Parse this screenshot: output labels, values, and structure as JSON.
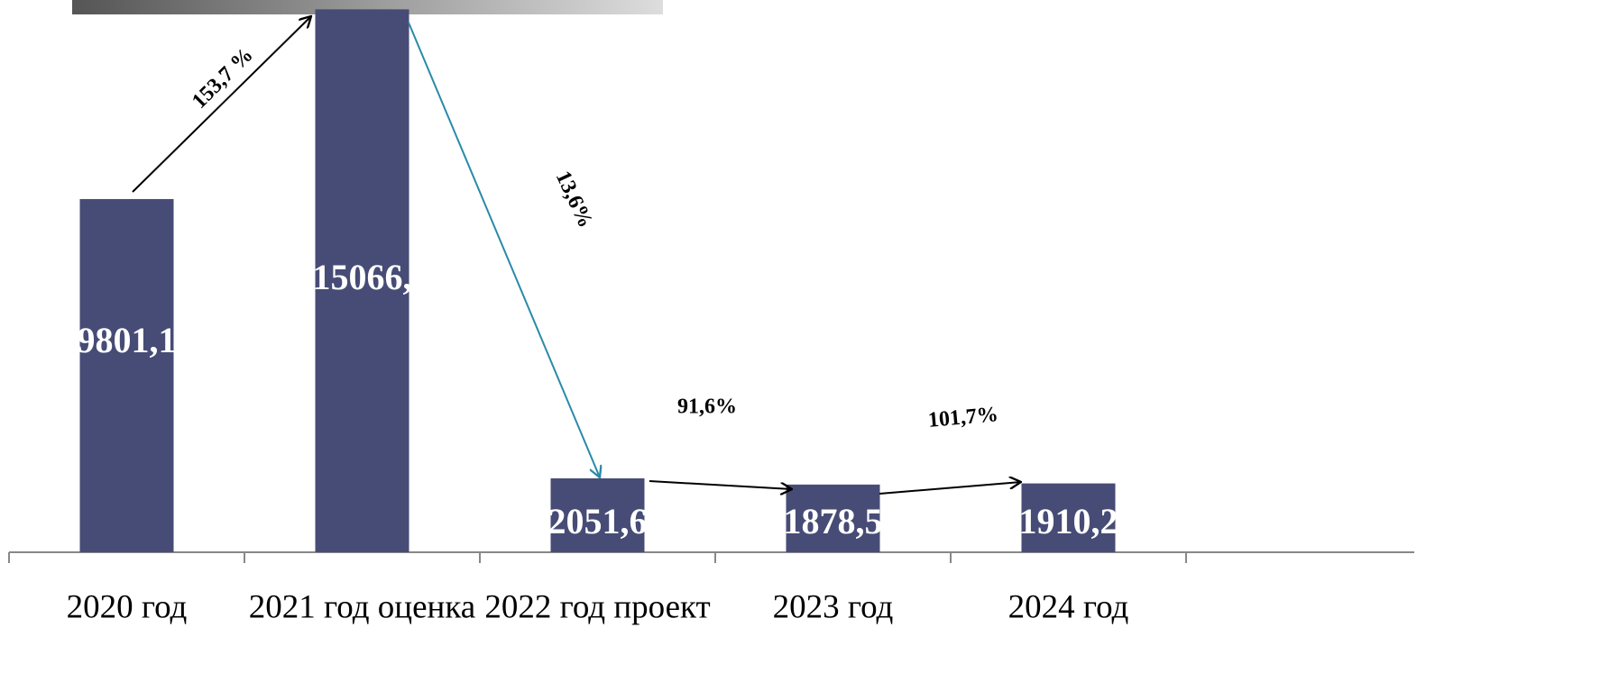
{
  "chart_data": {
    "type": "bar",
    "categories": [
      "2020 год",
      "2021 год оценка",
      "2022 год проект",
      "2023 год",
      "2024 год"
    ],
    "values": [
      9801.1,
      15066,
      2051.6,
      1878.5,
      1910.2
    ],
    "value_labels": [
      "9801,1",
      "15066,",
      "2051,6",
      "1878,5",
      "1910,2"
    ],
    "color": "#474c76",
    "ylim": [
      0,
      15500
    ],
    "annotations": [
      "153,7 %",
      "13,6%",
      "91,6%",
      "101,7%"
    ]
  }
}
